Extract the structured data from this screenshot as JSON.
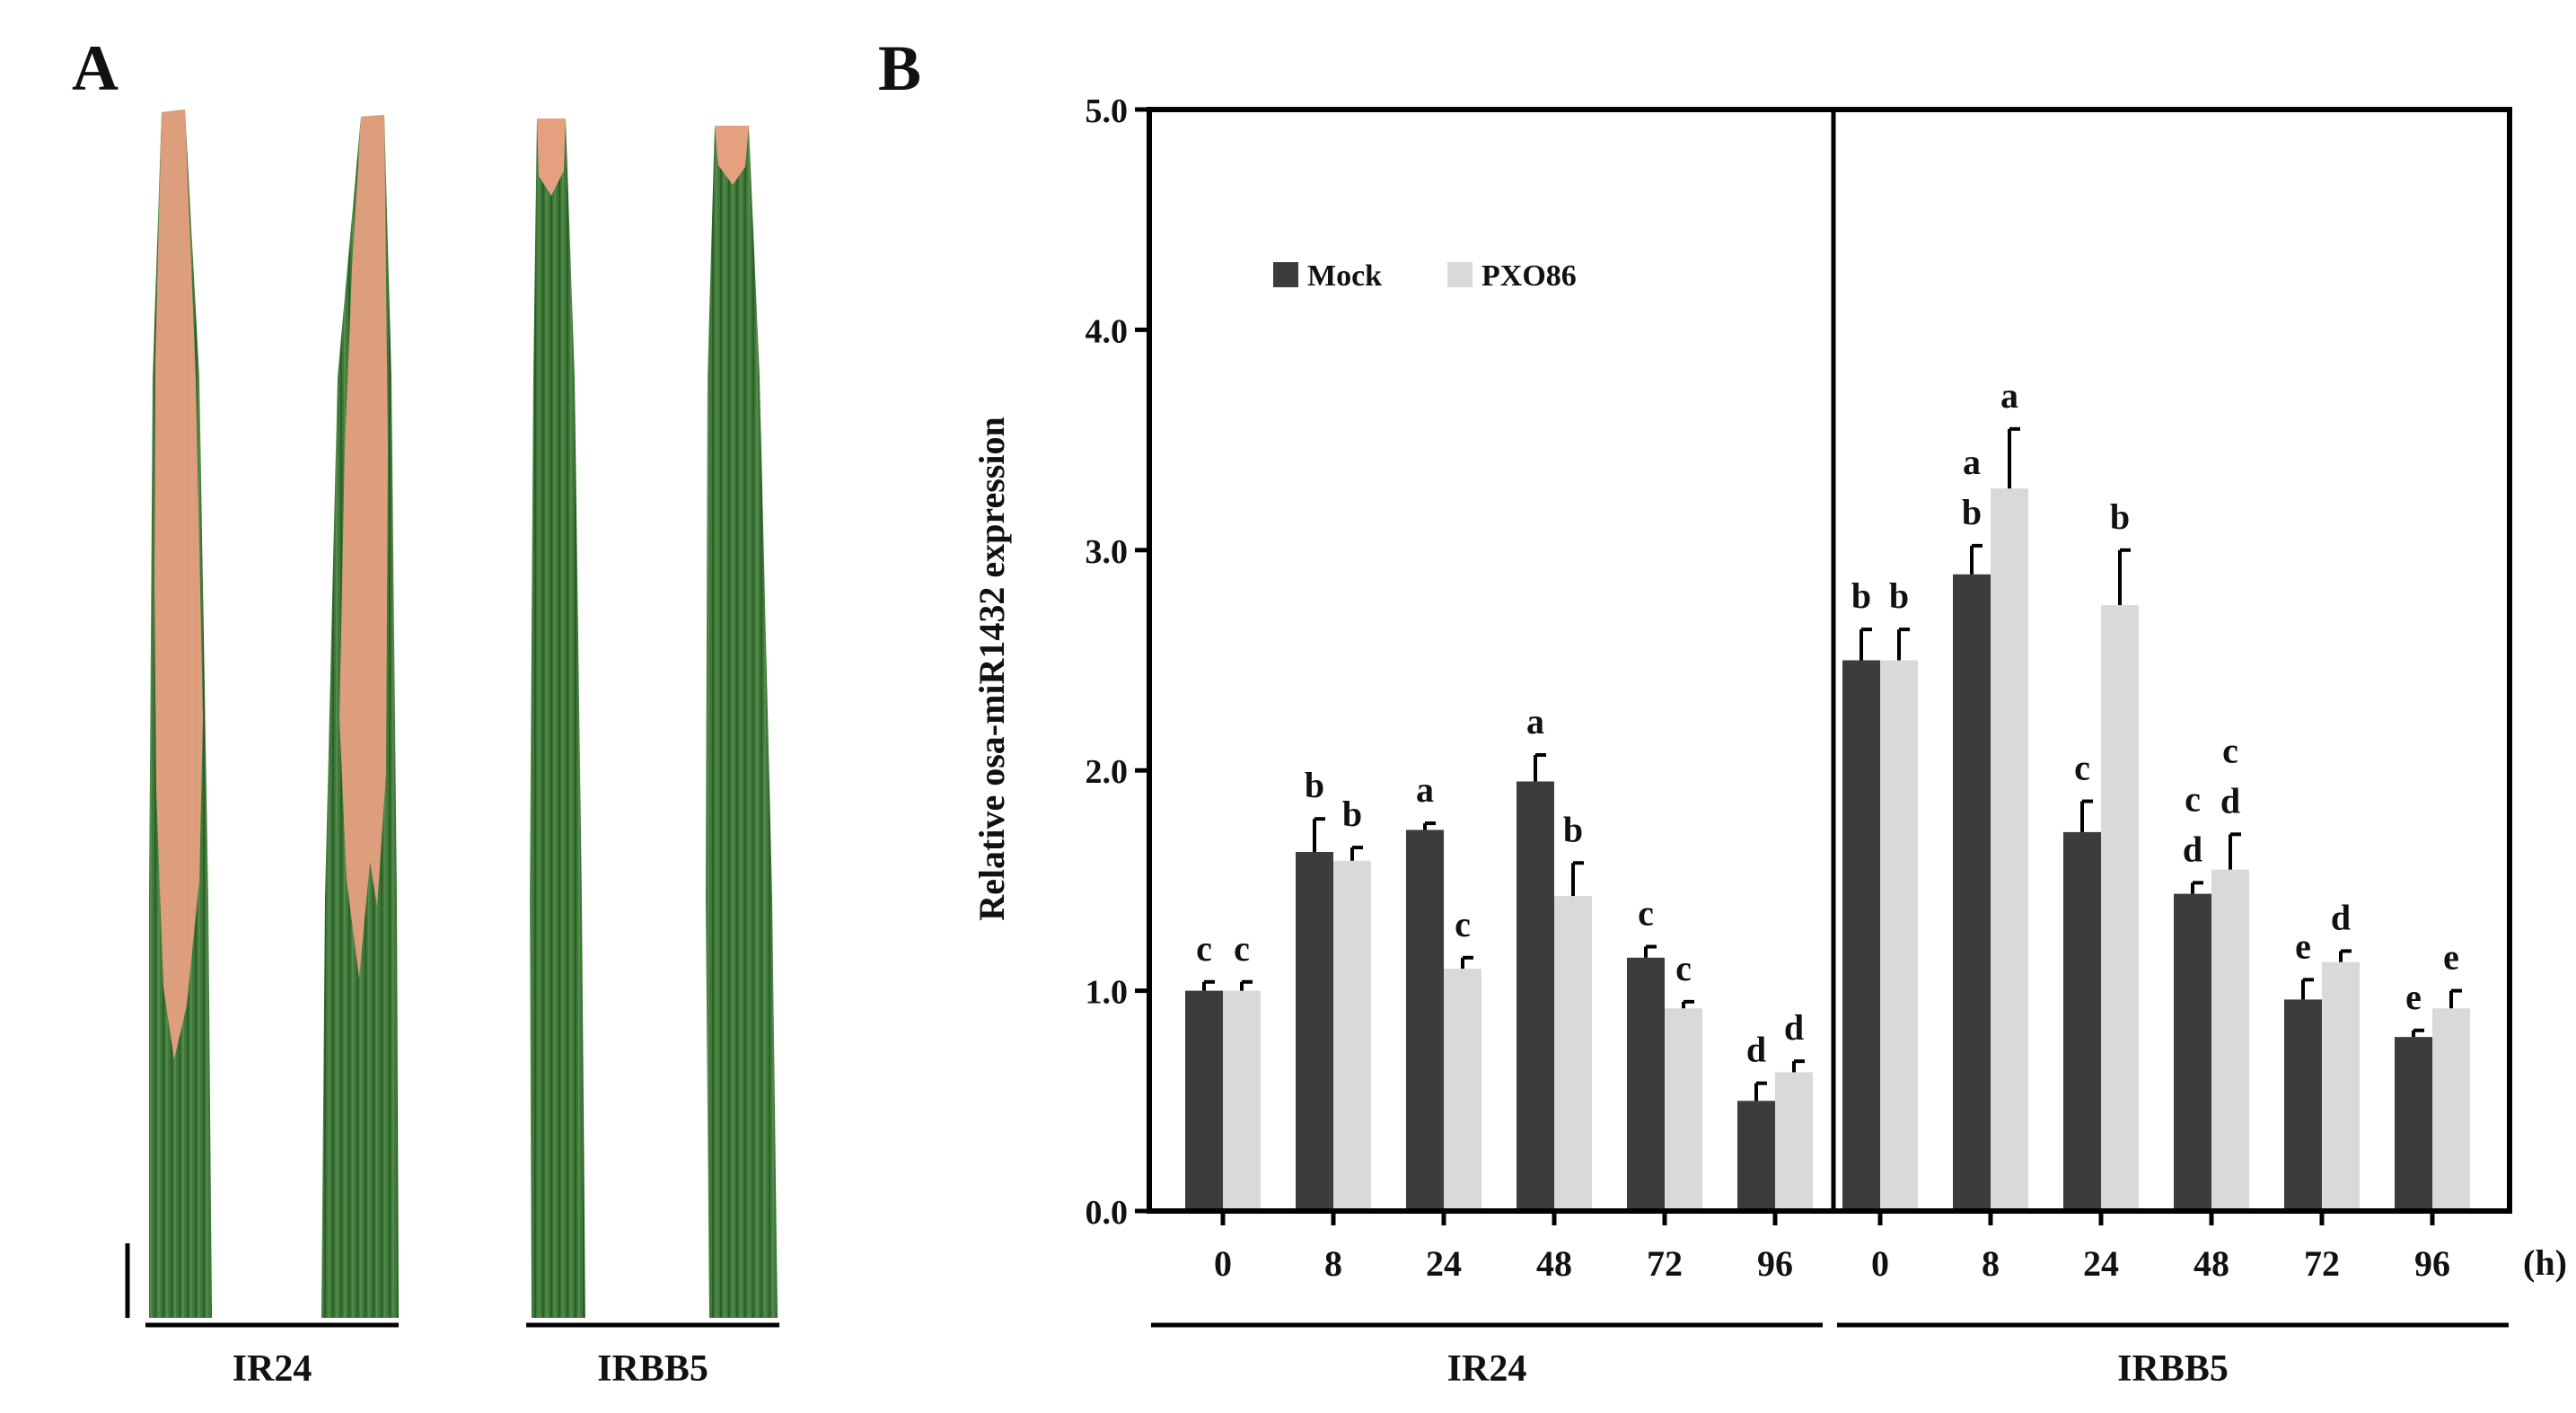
{
  "panels": {
    "a": {
      "label": "A",
      "groups": [
        "IR24",
        "IRBB5"
      ]
    },
    "b": {
      "label": "B"
    }
  },
  "colors": {
    "mock": "#3c3c3c",
    "pxo86": "#d9d9d9",
    "axis": "#000000",
    "leaf_green": "#3f7a3a",
    "leaf_lesion": "#e5a07f"
  },
  "chart_data": {
    "type": "bar",
    "ylabel": "Relative osa-miR1432 expression",
    "ylim": [
      0,
      5
    ],
    "yticks": [
      "0.0",
      "1.0",
      "2.0",
      "3.0",
      "4.0",
      "5.0"
    ],
    "x_unit": "(h)",
    "legend": {
      "position": "top-left",
      "entries": [
        "Mock",
        "PXO86"
      ]
    },
    "groups": [
      {
        "name": "IR24",
        "categories": [
          "0",
          "8",
          "24",
          "48",
          "72",
          "96"
        ],
        "series": [
          {
            "name": "Mock",
            "values": [
              1.0,
              1.63,
              1.73,
              1.95,
              1.15,
              0.5
            ],
            "errors": [
              0.04,
              0.15,
              0.03,
              0.12,
              0.05,
              0.08
            ],
            "letters": [
              "c",
              "b",
              "a",
              "a",
              "c",
              "d"
            ]
          },
          {
            "name": "PXO86",
            "values": [
              1.0,
              1.59,
              1.1,
              1.43,
              0.92,
              0.63
            ],
            "errors": [
              0.04,
              0.06,
              0.05,
              0.15,
              0.03,
              0.05
            ],
            "letters": [
              "c",
              "b",
              "c",
              "b",
              "c",
              "d"
            ]
          }
        ]
      },
      {
        "name": "IRBB5",
        "categories": [
          "0",
          "8",
          "24",
          "48",
          "72",
          "96"
        ],
        "series": [
          {
            "name": "Mock",
            "values": [
              2.5,
              2.89,
              1.72,
              1.44,
              0.96,
              0.79
            ],
            "errors": [
              0.14,
              0.13,
              0.14,
              0.05,
              0.09,
              0.03
            ],
            "letters": [
              "b",
              "ab",
              "c",
              "cd",
              "e",
              "e"
            ]
          },
          {
            "name": "PXO86",
            "values": [
              2.5,
              3.28,
              2.75,
              1.55,
              1.13,
              0.92
            ],
            "errors": [
              0.14,
              0.27,
              0.25,
              0.16,
              0.05,
              0.08
            ],
            "letters": [
              "b",
              "a",
              "b",
              "cd",
              "d",
              "e"
            ]
          }
        ]
      }
    ]
  }
}
